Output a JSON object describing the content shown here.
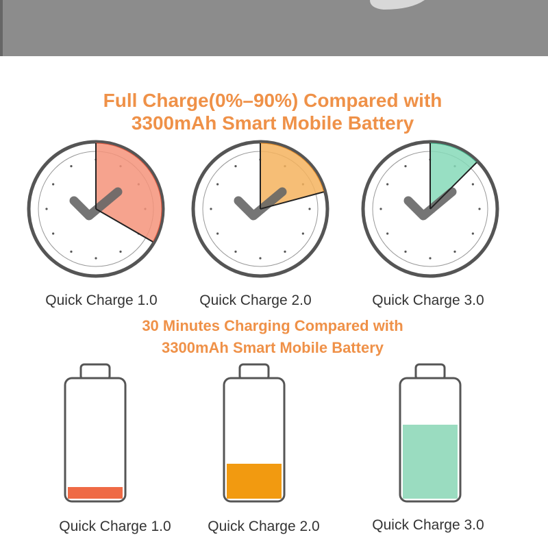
{
  "header": {
    "title_lines": [
      "Full Charge(0%–90%) Compared with",
      "3300mAh Smart Mobile Battery"
    ]
  },
  "clocks": [
    {
      "label": "Quick Charge 1.0"
    },
    {
      "label": "Quick Charge 2.0"
    },
    {
      "label": "Quick Charge 3.0"
    }
  ],
  "section2": {
    "title_lines": [
      "30 Minutes Charging Compared with",
      "3300mAh Smart Mobile Battery"
    ]
  },
  "batteries": [
    {
      "label": "Quick Charge 1.0"
    },
    {
      "label": "Quick Charge 2.0"
    },
    {
      "label": "Quick Charge 3.0"
    }
  ]
}
